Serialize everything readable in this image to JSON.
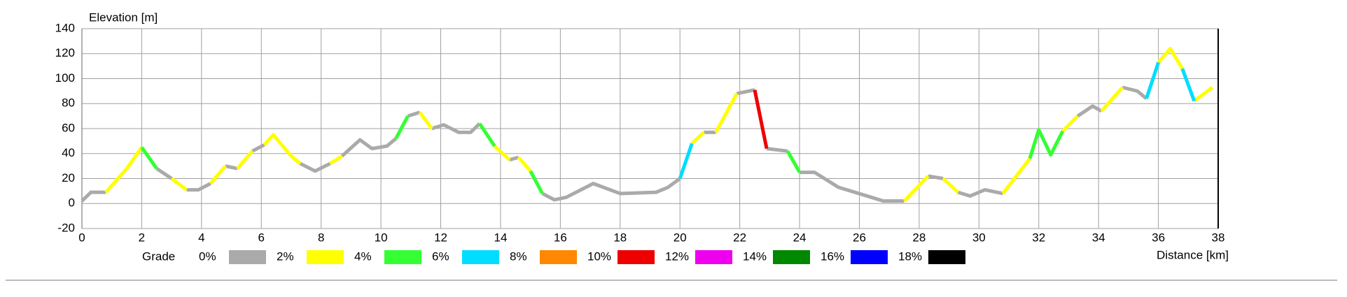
{
  "chart_data": {
    "type": "line",
    "y_label": "Elevation [m]",
    "x_label": "Distance [km]",
    "legend_title": "Grade",
    "grid": true,
    "xlim": [
      0,
      38
    ],
    "ylim": [
      -20,
      140
    ],
    "xticks": [
      0,
      2,
      4,
      6,
      8,
      10,
      12,
      14,
      16,
      18,
      20,
      22,
      24,
      26,
      28,
      30,
      32,
      34,
      36,
      38
    ],
    "yticks": [
      -20,
      0,
      20,
      40,
      60,
      80,
      100,
      120,
      140
    ],
    "series": [
      {
        "name": "0%",
        "color": "#aaaaaa",
        "x": [
          0,
          0.3,
          0.8,
          null,
          2.5,
          3,
          null,
          3.5,
          3.9,
          4.3,
          null,
          4.8,
          5.2,
          null,
          5.7,
          6.1,
          null,
          7.3,
          7.8,
          8.3,
          null,
          8.7,
          9.3,
          9.7,
          10.2,
          10.5,
          null,
          10.9,
          11.3,
          null,
          11.7,
          12.1,
          12.6,
          13,
          13.3,
          null,
          14.3,
          14.6,
          null,
          15.4,
          15.8,
          16.2,
          17.1,
          18,
          19.2,
          19.6,
          20,
          null,
          20.8,
          21.2,
          null,
          21.9,
          22.5,
          null,
          22.9,
          23.6,
          null,
          24,
          24.5,
          25.3,
          26.4,
          26.8,
          27.5,
          null,
          28.3,
          28.8,
          null,
          29.3,
          29.7,
          30.2,
          30.8,
          null,
          33.3,
          33.8,
          34.1,
          null,
          34.8,
          35.3,
          35.6
        ],
        "values": [
          2,
          9,
          9,
          null,
          28,
          20,
          null,
          11,
          11,
          16,
          null,
          30,
          28,
          null,
          42,
          47,
          null,
          32,
          26,
          32,
          null,
          38,
          51,
          44,
          46,
          52,
          null,
          70,
          73,
          null,
          60,
          63,
          57,
          57,
          64,
          null,
          35,
          37,
          null,
          8,
          3,
          5,
          16,
          8,
          9,
          13,
          20,
          null,
          57,
          57,
          null,
          88,
          91,
          null,
          44,
          42,
          null,
          25,
          25,
          13,
          5,
          2,
          2,
          null,
          22,
          20,
          null,
          9,
          6,
          11,
          8,
          null,
          70,
          78,
          74,
          null,
          93,
          90,
          84
        ]
      },
      {
        "name": "2%",
        "color": "#ffff00",
        "x": [
          0.8,
          1.5,
          2,
          null,
          3,
          3.5,
          null,
          4.3,
          4.8,
          null,
          5.2,
          5.7,
          null,
          6.1,
          6.4,
          7,
          7.3,
          null,
          8.3,
          8.7,
          null,
          11.3,
          11.7,
          null,
          13.8,
          14.3,
          null,
          14.6,
          15,
          null,
          20.4,
          20.8,
          null,
          21.2,
          21.9,
          null,
          27.5,
          28.3,
          null,
          28.8,
          29.3,
          null,
          30.8,
          31.7,
          null,
          32.8,
          33.3,
          null,
          34.1,
          34.8,
          null,
          36,
          36.4,
          36.8,
          null,
          37.2,
          37.8
        ],
        "values": [
          9,
          28,
          45,
          null,
          20,
          11,
          null,
          16,
          30,
          null,
          28,
          42,
          null,
          47,
          55,
          38,
          32,
          null,
          32,
          38,
          null,
          73,
          60,
          null,
          46,
          35,
          null,
          37,
          26,
          null,
          48,
          57,
          null,
          57,
          88,
          null,
          2,
          22,
          null,
          20,
          9,
          null,
          8,
          36,
          null,
          58,
          70,
          null,
          74,
          93,
          null,
          113,
          124,
          108,
          null,
          82,
          93
        ]
      },
      {
        "name": "4%",
        "color": "#33ff33",
        "x": [
          2,
          2.5,
          null,
          10.5,
          10.9,
          null,
          13.3,
          13.8,
          null,
          15,
          15.4,
          null,
          23.6,
          24,
          null,
          31.7,
          32,
          32.4,
          32.8
        ],
        "values": [
          45,
          28,
          null,
          52,
          70,
          null,
          64,
          46,
          null,
          26,
          8,
          null,
          42,
          25,
          null,
          36,
          59,
          39,
          58
        ]
      },
      {
        "name": "6%",
        "color": "#00ddff",
        "x": [
          20,
          20.4,
          null,
          35.6,
          36,
          null,
          36.8,
          37.2
        ],
        "values": [
          20,
          48,
          null,
          84,
          113,
          null,
          108,
          82
        ]
      },
      {
        "name": "8%",
        "color": "#ff8800",
        "x": [],
        "values": []
      },
      {
        "name": "10%",
        "color": "#ee0000",
        "x": [
          22.5,
          22.9
        ],
        "values": [
          91,
          44
        ]
      },
      {
        "name": "12%",
        "color": "#ee00ee",
        "x": [],
        "values": []
      },
      {
        "name": "14%",
        "color": "#008800",
        "x": [],
        "values": []
      },
      {
        "name": "16%",
        "color": "#0000ff",
        "x": [],
        "values": []
      },
      {
        "name": "18%",
        "color": "#000000",
        "x": [],
        "values": []
      }
    ]
  }
}
